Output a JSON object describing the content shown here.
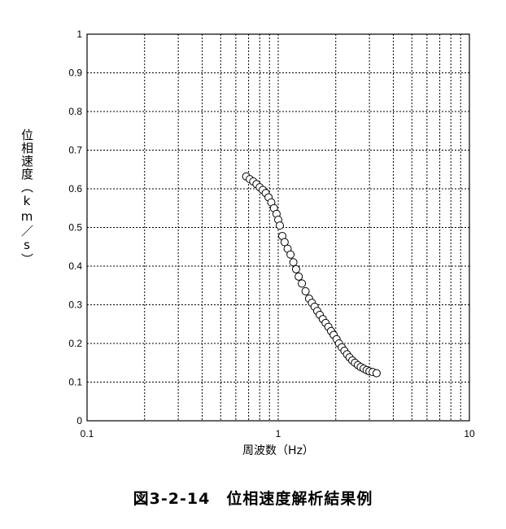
{
  "chart_data": {
    "type": "scatter",
    "title": "図3-2-14　位相速度解析結果例",
    "xlabel": "周波数（Hz）",
    "ylabel": "位相速度（km／s）",
    "xscale": "log",
    "xlim": [
      0.1,
      10
    ],
    "ylim": [
      0,
      1
    ],
    "xticks": [
      "0.1",
      "1",
      "10"
    ],
    "yticks": [
      "0",
      "0.1",
      "0.2",
      "0.3",
      "0.4",
      "0.5",
      "0.6",
      "0.7",
      "0.8",
      "0.9",
      "1"
    ],
    "grid": true,
    "marker": "open-circle",
    "points": [
      [
        0.68,
        0.632
      ],
      [
        0.71,
        0.625
      ],
      [
        0.74,
        0.619
      ],
      [
        0.77,
        0.612
      ],
      [
        0.8,
        0.604
      ],
      [
        0.83,
        0.597
      ],
      [
        0.86,
        0.589
      ],
      [
        0.89,
        0.578
      ],
      [
        0.92,
        0.565
      ],
      [
        0.95,
        0.55
      ],
      [
        0.98,
        0.535
      ],
      [
        1.0,
        0.52
      ],
      [
        1.02,
        0.505
      ],
      [
        1.05,
        0.478
      ],
      [
        1.08,
        0.462
      ],
      [
        1.12,
        0.445
      ],
      [
        1.16,
        0.43
      ],
      [
        1.2,
        0.41
      ],
      [
        1.24,
        0.392
      ],
      [
        1.28,
        0.373
      ],
      [
        1.33,
        0.355
      ],
      [
        1.39,
        0.335
      ],
      [
        1.45,
        0.316
      ],
      [
        1.5,
        0.305
      ],
      [
        1.55,
        0.295
      ],
      [
        1.6,
        0.284
      ],
      [
        1.65,
        0.274
      ],
      [
        1.71,
        0.263
      ],
      [
        1.77,
        0.253
      ],
      [
        1.83,
        0.243
      ],
      [
        1.89,
        0.232
      ],
      [
        1.95,
        0.222
      ],
      [
        2.02,
        0.211
      ],
      [
        2.08,
        0.2
      ],
      [
        2.15,
        0.19
      ],
      [
        2.22,
        0.181
      ],
      [
        2.29,
        0.172
      ],
      [
        2.36,
        0.164
      ],
      [
        2.44,
        0.156
      ],
      [
        2.52,
        0.15
      ],
      [
        2.61,
        0.144
      ],
      [
        2.7,
        0.139
      ],
      [
        2.8,
        0.135
      ],
      [
        2.9,
        0.131
      ],
      [
        3.0,
        0.128
      ],
      [
        3.12,
        0.126
      ],
      [
        3.27,
        0.123
      ]
    ]
  }
}
